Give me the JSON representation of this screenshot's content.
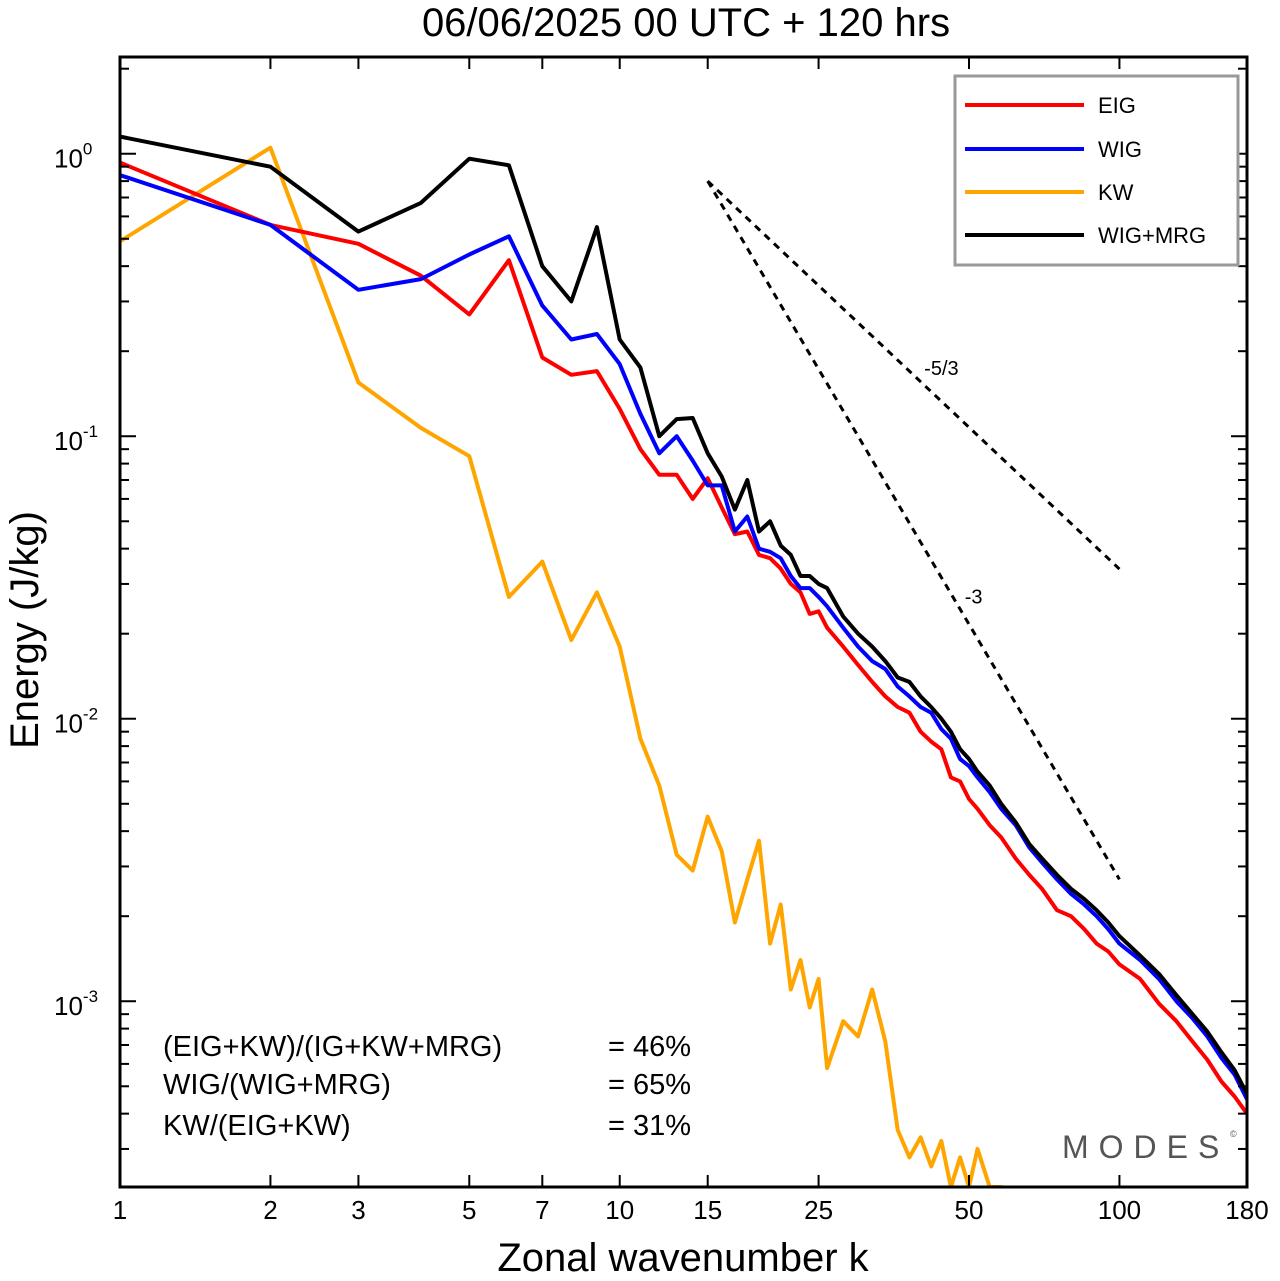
{
  "chart_data": {
    "type": "line",
    "title": "06/06/2025  00 UTC  + 120 hrs",
    "xlabel": "Zonal wavenumber k",
    "ylabel": "Energy (J/kg)",
    "x_scale": "log",
    "y_scale": "log",
    "xlim": [
      1,
      180
    ],
    "ylim": [
      0.00022,
      2.2
    ],
    "x_ticks": [
      1,
      2,
      3,
      5,
      7,
      10,
      15,
      25,
      50,
      100,
      180
    ],
    "y_ticks": [
      {
        "value": 1,
        "base": "10",
        "exp": "0"
      },
      {
        "value": 0.1,
        "base": "10",
        "exp": "-1"
      },
      {
        "value": 0.01,
        "base": "10",
        "exp": "-2"
      },
      {
        "value": 0.001,
        "base": "10",
        "exp": "-3"
      }
    ],
    "legend_position": "top-right",
    "series": [
      {
        "name": "EIG",
        "color": "#ff0000",
        "points": [
          [
            1,
            0.93
          ],
          [
            2,
            0.56
          ],
          [
            3,
            0.48
          ],
          [
            4,
            0.37
          ],
          [
            5,
            0.27
          ],
          [
            6,
            0.42
          ],
          [
            7,
            0.19
          ],
          [
            8,
            0.165
          ],
          [
            9,
            0.17
          ],
          [
            10,
            0.125
          ],
          [
            11,
            0.09
          ],
          [
            12,
            0.073
          ],
          [
            13,
            0.073
          ],
          [
            14,
            0.06
          ],
          [
            15,
            0.071
          ],
          [
            16,
            0.056
          ],
          [
            17,
            0.045
          ],
          [
            18,
            0.046
          ],
          [
            19,
            0.038
          ],
          [
            20,
            0.037
          ],
          [
            21,
            0.034
          ],
          [
            22,
            0.03
          ],
          [
            23,
            0.028
          ],
          [
            24,
            0.0235
          ],
          [
            25,
            0.024
          ],
          [
            26,
            0.021
          ],
          [
            28,
            0.018
          ],
          [
            30,
            0.0155
          ],
          [
            32,
            0.0135
          ],
          [
            34,
            0.012
          ],
          [
            36,
            0.011
          ],
          [
            38,
            0.0105
          ],
          [
            40,
            0.009
          ],
          [
            42,
            0.0083
          ],
          [
            44,
            0.0078
          ],
          [
            46,
            0.0062
          ],
          [
            48,
            0.006
          ],
          [
            50,
            0.0052
          ],
          [
            52,
            0.0048
          ],
          [
            55,
            0.0042
          ],
          [
            58,
            0.0038
          ],
          [
            62,
            0.0032
          ],
          [
            66,
            0.0028
          ],
          [
            70,
            0.0025
          ],
          [
            75,
            0.0021
          ],
          [
            80,
            0.002
          ],
          [
            85,
            0.0018
          ],
          [
            90,
            0.0016
          ],
          [
            95,
            0.0015
          ],
          [
            100,
            0.00135
          ],
          [
            110,
            0.0012
          ],
          [
            120,
            0.00098
          ],
          [
            130,
            0.00085
          ],
          [
            140,
            0.00072
          ],
          [
            150,
            0.00062
          ],
          [
            160,
            0.00052
          ],
          [
            170,
            0.00046
          ],
          [
            180,
            0.0004
          ]
        ]
      },
      {
        "name": "WIG",
        "color": "#0000ff",
        "points": [
          [
            1,
            0.84
          ],
          [
            2,
            0.56
          ],
          [
            3,
            0.33
          ],
          [
            4,
            0.36
          ],
          [
            5,
            0.44
          ],
          [
            6,
            0.51
          ],
          [
            7,
            0.29
          ],
          [
            8,
            0.22
          ],
          [
            9,
            0.23
          ],
          [
            10,
            0.18
          ],
          [
            11,
            0.12
          ],
          [
            12,
            0.087
          ],
          [
            13,
            0.1
          ],
          [
            14,
            0.082
          ],
          [
            15,
            0.067
          ],
          [
            16,
            0.067
          ],
          [
            17,
            0.046
          ],
          [
            18,
            0.052
          ],
          [
            19,
            0.04
          ],
          [
            20,
            0.039
          ],
          [
            21,
            0.037
          ],
          [
            22,
            0.032
          ],
          [
            23,
            0.029
          ],
          [
            24,
            0.029
          ],
          [
            25,
            0.027
          ],
          [
            26,
            0.025
          ],
          [
            28,
            0.021
          ],
          [
            30,
            0.018
          ],
          [
            32,
            0.016
          ],
          [
            34,
            0.015
          ],
          [
            36,
            0.013
          ],
          [
            38,
            0.012
          ],
          [
            40,
            0.011
          ],
          [
            42,
            0.0105
          ],
          [
            44,
            0.0092
          ],
          [
            46,
            0.0085
          ],
          [
            48,
            0.0072
          ],
          [
            50,
            0.0068
          ],
          [
            52,
            0.0062
          ],
          [
            55,
            0.0055
          ],
          [
            58,
            0.0048
          ],
          [
            62,
            0.0042
          ],
          [
            66,
            0.0035
          ],
          [
            70,
            0.0031
          ],
          [
            75,
            0.0027
          ],
          [
            80,
            0.0024
          ],
          [
            85,
            0.0022
          ],
          [
            90,
            0.002
          ],
          [
            95,
            0.0018
          ],
          [
            100,
            0.0016
          ],
          [
            110,
            0.0014
          ],
          [
            120,
            0.0012
          ],
          [
            130,
            0.001
          ],
          [
            140,
            0.00087
          ],
          [
            150,
            0.00075
          ],
          [
            160,
            0.00063
          ],
          [
            170,
            0.00055
          ],
          [
            180,
            0.00045
          ]
        ]
      },
      {
        "name": "KW",
        "color": "#ffa500",
        "points": [
          [
            1,
            0.49
          ],
          [
            2,
            1.05
          ],
          [
            3,
            0.155
          ],
          [
            4,
            0.107
          ],
          [
            5,
            0.085
          ],
          [
            6,
            0.027
          ],
          [
            7,
            0.036
          ],
          [
            8,
            0.019
          ],
          [
            9,
            0.028
          ],
          [
            10,
            0.018
          ],
          [
            11,
            0.0085
          ],
          [
            12,
            0.0058
          ],
          [
            13,
            0.0033
          ],
          [
            14,
            0.0029
          ],
          [
            15,
            0.0045
          ],
          [
            16,
            0.0034
          ],
          [
            17,
            0.0019
          ],
          [
            18,
            0.0027
          ],
          [
            19,
            0.0037
          ],
          [
            20,
            0.0016
          ],
          [
            21,
            0.0022
          ],
          [
            22,
            0.0011
          ],
          [
            23,
            0.0014
          ],
          [
            24,
            0.00095
          ],
          [
            25,
            0.0012
          ],
          [
            26,
            0.00058
          ],
          [
            28,
            0.00085
          ],
          [
            30,
            0.00075
          ],
          [
            32,
            0.0011
          ],
          [
            34,
            0.00072
          ],
          [
            36,
            0.00035
          ],
          [
            38,
            0.00028
          ],
          [
            40,
            0.00033
          ],
          [
            42,
            0.00026
          ],
          [
            44,
            0.00032
          ],
          [
            46,
            0.00022
          ],
          [
            48,
            0.00028
          ],
          [
            50,
            0.00022
          ],
          [
            52,
            0.0003
          ],
          [
            55,
            0.00022
          ],
          [
            58,
            0.00022
          ]
        ]
      },
      {
        "name": "WIG+MRG",
        "color": "#000000",
        "points": [
          [
            1,
            1.15
          ],
          [
            2,
            0.9
          ],
          [
            3,
            0.53
          ],
          [
            4,
            0.67
          ],
          [
            5,
            0.96
          ],
          [
            6,
            0.91
          ],
          [
            7,
            0.4
          ],
          [
            8,
            0.3
          ],
          [
            9,
            0.55
          ],
          [
            10,
            0.22
          ],
          [
            11,
            0.175
          ],
          [
            12,
            0.1
          ],
          [
            13,
            0.115
          ],
          [
            14,
            0.116
          ],
          [
            15,
            0.087
          ],
          [
            16,
            0.072
          ],
          [
            17,
            0.055
          ],
          [
            18,
            0.07
          ],
          [
            19,
            0.046
          ],
          [
            20,
            0.05
          ],
          [
            21,
            0.041
          ],
          [
            22,
            0.038
          ],
          [
            23,
            0.032
          ],
          [
            24,
            0.032
          ],
          [
            25,
            0.03
          ],
          [
            26,
            0.029
          ],
          [
            28,
            0.023
          ],
          [
            30,
            0.02
          ],
          [
            32,
            0.018
          ],
          [
            34,
            0.016
          ],
          [
            36,
            0.014
          ],
          [
            38,
            0.0135
          ],
          [
            40,
            0.012
          ],
          [
            42,
            0.011
          ],
          [
            44,
            0.01
          ],
          [
            46,
            0.009
          ],
          [
            48,
            0.0078
          ],
          [
            50,
            0.0072
          ],
          [
            52,
            0.0065
          ],
          [
            55,
            0.0058
          ],
          [
            58,
            0.005
          ],
          [
            62,
            0.0043
          ],
          [
            66,
            0.0036
          ],
          [
            70,
            0.0032
          ],
          [
            75,
            0.0028
          ],
          [
            80,
            0.0025
          ],
          [
            85,
            0.0023
          ],
          [
            90,
            0.0021
          ],
          [
            95,
            0.0019
          ],
          [
            100,
            0.0017
          ],
          [
            110,
            0.00145
          ],
          [
            120,
            0.00125
          ],
          [
            130,
            0.00105
          ],
          [
            140,
            0.0009
          ],
          [
            150,
            0.00078
          ],
          [
            160,
            0.00066
          ],
          [
            170,
            0.00057
          ],
          [
            180,
            0.00047
          ]
        ]
      }
    ],
    "reference_slopes": [
      {
        "label": "-5/3",
        "slope": -1.6667,
        "x": [
          15,
          100
        ],
        "y_start": 0.8
      },
      {
        "label": "-3",
        "slope": -3,
        "x": [
          15,
          100
        ],
        "y_start": 0.8
      }
    ],
    "stats": [
      {
        "label": "(EIG+KW)/(IG+KW+MRG)",
        "value": "= 46%"
      },
      {
        "label": "WIG/(WIG+MRG)",
        "value": "= 65%"
      },
      {
        "label": "KW/(EIG+KW)",
        "value": "= 31%"
      }
    ]
  },
  "watermark": {
    "text": "MODES",
    "symbol": "©"
  }
}
